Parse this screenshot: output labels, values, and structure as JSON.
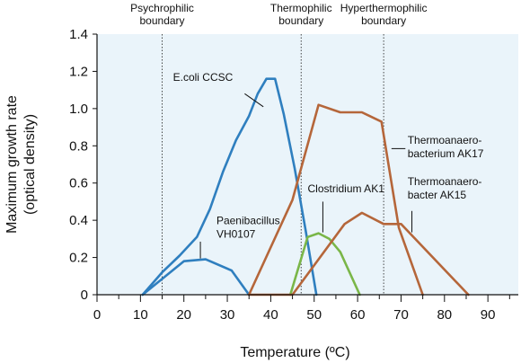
{
  "chart_data": {
    "type": "line",
    "xlabel": "Temperature (ºC)",
    "ylabel_lines": [
      "Maximum growth rate",
      "(optical density)"
    ],
    "xlim": [
      0,
      97
    ],
    "ylim": [
      0,
      1.4
    ],
    "xticks": [
      0,
      10,
      20,
      30,
      40,
      50,
      60,
      70,
      80,
      90
    ],
    "yticks": [
      0,
      0.2,
      0.4,
      0.6,
      0.8,
      1.0,
      1.2,
      1.4
    ],
    "ytick_labels": [
      "0",
      "0.2",
      "0.4",
      "0.6",
      "0.8",
      "1.0",
      "1.2",
      "1.4"
    ],
    "background": "#eaf4fa",
    "boundaries": [
      {
        "x": 15,
        "lines": [
          "Psychrophilic",
          "boundary"
        ]
      },
      {
        "x": 47,
        "lines": [
          "Thermophilic",
          "boundary"
        ]
      },
      {
        "x": 66,
        "lines": [
          "Hyperthermophilic",
          "boundary"
        ]
      }
    ],
    "series": [
      {
        "name": "E.coli CCSC",
        "color": "#2f7fbf",
        "x": [
          10.5,
          15,
          19,
          23,
          26,
          29,
          32,
          35,
          37,
          39,
          41,
          43,
          45.5,
          48,
          50.5
        ],
        "y": [
          0,
          0.12,
          0.21,
          0.31,
          0.46,
          0.66,
          0.83,
          0.96,
          1.08,
          1.16,
          1.16,
          0.97,
          0.68,
          0.35,
          0
        ]
      },
      {
        "name": "Paenibacillus VH0107",
        "color": "#2f7fbf",
        "x": [
          10.5,
          20,
          25,
          31,
          35
        ],
        "y": [
          0,
          0.18,
          0.19,
          0.13,
          0
        ]
      },
      {
        "name": "Clostridium AK1",
        "color": "#7ab648",
        "x": [
          44.5,
          48.5,
          51,
          53.5,
          56,
          60.5
        ],
        "y": [
          0,
          0.31,
          0.33,
          0.3,
          0.23,
          0
        ]
      },
      {
        "name": "Thermoanaero-bacterium AK17",
        "color": "#b5663a",
        "x": [
          35,
          45,
          51,
          56,
          61,
          65.5,
          69.5,
          75
        ],
        "y": [
          0,
          0.51,
          1.02,
          0.98,
          0.98,
          0.93,
          0.36,
          0
        ]
      },
      {
        "name": "Thermoanaero-bacter AK15",
        "color": "#b5663a",
        "x": [
          35,
          45,
          57,
          61,
          66,
          70,
          85.5
        ],
        "y": [
          0,
          0,
          0.38,
          0.44,
          0.38,
          0.38,
          0
        ]
      }
    ],
    "annotations": [
      {
        "lines": [
          "E.coli CCSC"
        ],
        "anchor": "start",
        "tx": 17.5,
        "ty": 1.15,
        "lx1": 34,
        "ly1": 1.08,
        "lx2": 38.3,
        "ly2": 1.01
      },
      {
        "lines": [
          "Paenibacillus",
          "VH0107"
        ],
        "anchor": "start",
        "tx": 27.5,
        "ty": 0.38,
        "lx1": 23.8,
        "ly1": 0.285,
        "lx2": 23.8,
        "ly2": 0.195
      },
      {
        "lines": [
          "Clostridium AK1"
        ],
        "anchor": "start",
        "tx": 48.5,
        "ty": 0.55,
        "lx1": 52,
        "ly1": 0.5,
        "lx2": 52,
        "ly2": 0.335
      },
      {
        "lines": [
          "Thermoanaero-",
          "bacterium AK17"
        ],
        "anchor": "start",
        "tx": 71.5,
        "ty": 0.81,
        "lx1": 71,
        "ly1": 0.785,
        "lx2": 67.8,
        "ly2": 0.785
      },
      {
        "lines": [
          "Thermoanaero-",
          "bacter AK15"
        ],
        "anchor": "start",
        "tx": 71.5,
        "ty": 0.59,
        "lx1": 72.5,
        "ly1": 0.45,
        "lx2": 72.5,
        "ly2": 0.335
      }
    ]
  }
}
